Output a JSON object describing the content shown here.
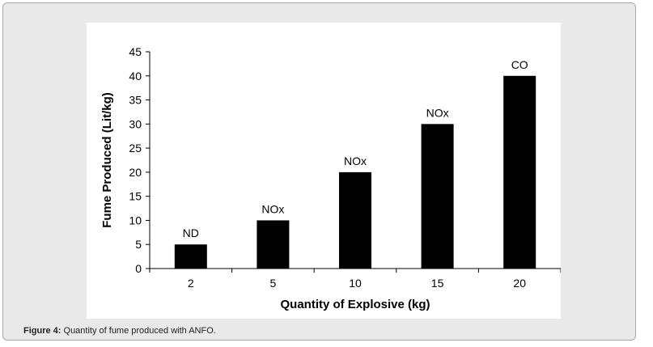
{
  "caption": {
    "label": "Figure 4:",
    "text": " Quantity of fume produced with ANFO."
  },
  "colors": {
    "bar": "#000000",
    "axis": "#000000",
    "text": "#000000",
    "frame_bg": "#e9e9e9"
  },
  "chart_data": {
    "type": "bar",
    "title": "",
    "xlabel": "Quantity of Explosive (kg)",
    "ylabel": "Fume Produced (Lit/kg)",
    "categories": [
      "2",
      "5",
      "10",
      "15",
      "20"
    ],
    "values": [
      5,
      10,
      20,
      30,
      40
    ],
    "bar_labels": [
      "ND",
      "NOx",
      "NOx",
      "NOx",
      "CO"
    ],
    "ylim": [
      0,
      45
    ],
    "yticks": [
      0,
      5,
      10,
      15,
      20,
      25,
      30,
      35,
      40,
      45
    ],
    "grid": false,
    "legend": "none"
  }
}
